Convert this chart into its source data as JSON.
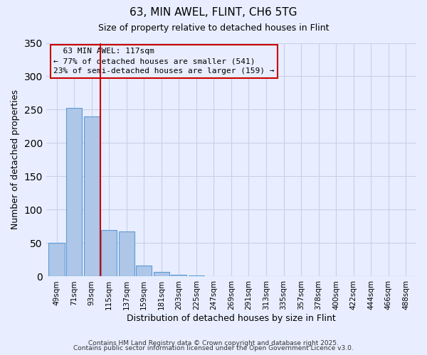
{
  "title": "63, MIN AWEL, FLINT, CH6 5TG",
  "subtitle": "Size of property relative to detached houses in Flint",
  "xlabel": "Distribution of detached houses by size in Flint",
  "ylabel": "Number of detached properties",
  "categories": [
    "49sqm",
    "71sqm",
    "93sqm",
    "115sqm",
    "137sqm",
    "159sqm",
    "181sqm",
    "203sqm",
    "225sqm",
    "247sqm",
    "269sqm",
    "291sqm",
    "313sqm",
    "335sqm",
    "357sqm",
    "378sqm",
    "400sqm",
    "422sqm",
    "444sqm",
    "466sqm",
    "488sqm"
  ],
  "values": [
    50,
    253,
    240,
    70,
    67,
    16,
    7,
    3,
    2,
    0,
    0,
    0,
    0,
    0,
    0,
    0,
    0,
    0,
    0,
    0,
    0
  ],
  "bar_color": "#aec6e8",
  "bar_edge_color": "#5b9bd5",
  "vline_color": "#cc0000",
  "annotation_title": "63 MIN AWEL: 117sqm",
  "annotation_line1": "← 77% of detached houses are smaller (541)",
  "annotation_line2": "23% of semi-detached houses are larger (159) →",
  "box_edge_color": "#cc0000",
  "ylim": [
    0,
    350
  ],
  "yticks": [
    0,
    50,
    100,
    150,
    200,
    250,
    300,
    350
  ],
  "footer1": "Contains HM Land Registry data © Crown copyright and database right 2025.",
  "footer2": "Contains public sector information licensed under the Open Government Licence v3.0.",
  "background_color": "#e8eeff",
  "grid_color": "#c8d0e8"
}
